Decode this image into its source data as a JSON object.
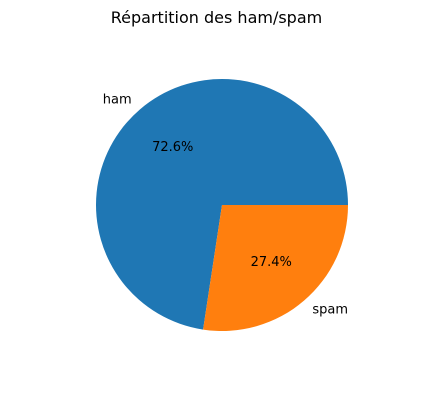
{
  "chart_data": {
    "type": "pie",
    "title": "Répartition des ham/spam",
    "categories": [
      "ham",
      "spam"
    ],
    "values": [
      72.6,
      27.4
    ],
    "percent_labels": [
      "72.6%",
      "27.4%"
    ],
    "colors": [
      "#1f77b4",
      "#ff7f0e"
    ],
    "start_angle_deg": 0,
    "direction": "counterclockwise"
  }
}
